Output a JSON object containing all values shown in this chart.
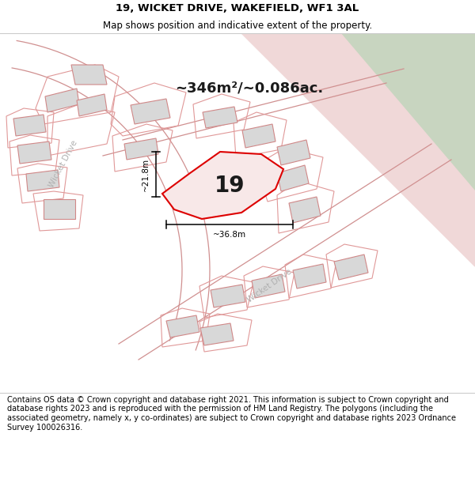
{
  "title": "19, WICKET DRIVE, WAKEFIELD, WF1 3AL",
  "subtitle": "Map shows position and indicative extent of the property.",
  "footer": "Contains OS data © Crown copyright and database right 2021. This information is subject to Crown copyright and database rights 2023 and is reproduced with the permission of HM Land Registry. The polygons (including the associated geometry, namely x, y co-ordinates) are subject to Crown copyright and database rights 2023 Ordnance Survey 100026316.",
  "area_label": "~346m²/~0.086ac.",
  "width_label": "~36.8m",
  "height_label": "~21.8m",
  "property_number": "19",
  "title_fontsize": 9.5,
  "subtitle_fontsize": 8.5,
  "footer_fontsize": 7.0,
  "map_white": "#ffffff",
  "map_gray": "#f0f0f0",
  "green_fill": "#c8d5c0",
  "pink_fill": "#f0d8d8",
  "building_fill": "#d8d8d8",
  "building_stroke": "#d08888",
  "lot_stroke": "#e09898",
  "highlight_fill": "#f8e8e8",
  "highlight_stroke": "#dd0000",
  "dim_color": "#000000",
  "road_label_color": "#b0b0b0",
  "text_color": "#1a1a1a"
}
